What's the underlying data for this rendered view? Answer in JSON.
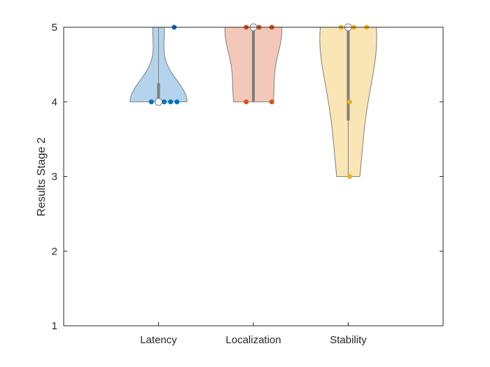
{
  "chart_data": {
    "type": "violin",
    "title": "",
    "xlabel": "",
    "ylabel": "Results Stage 2",
    "ylim": [
      1,
      5
    ],
    "yticks": [
      "1",
      "2",
      "3",
      "4",
      "5"
    ],
    "categories": [
      "Latency",
      "Localization",
      "Stability"
    ],
    "grid": false,
    "box": true,
    "series": [
      {
        "category": "Latency",
        "fill": "#b3d4ec",
        "point_color": "#0072bd",
        "points": [
          4,
          4,
          4,
          4,
          4,
          5
        ],
        "median": 4,
        "q1": 4,
        "q3": 4.25,
        "range": [
          4,
          5
        ]
      },
      {
        "category": "Localization",
        "fill": "#f4c8b8",
        "point_color": "#d95319",
        "points": [
          4,
          4,
          5,
          5,
          5
        ],
        "median": 5,
        "q1": 4,
        "q3": 5,
        "range": [
          4,
          5
        ]
      },
      {
        "category": "Stability",
        "fill": "#fae6b4",
        "point_color": "#edb120",
        "points": [
          3,
          4,
          5,
          5,
          5
        ],
        "median": 5,
        "q1": 3.75,
        "q3": 5,
        "range": [
          3,
          5
        ]
      }
    ]
  }
}
